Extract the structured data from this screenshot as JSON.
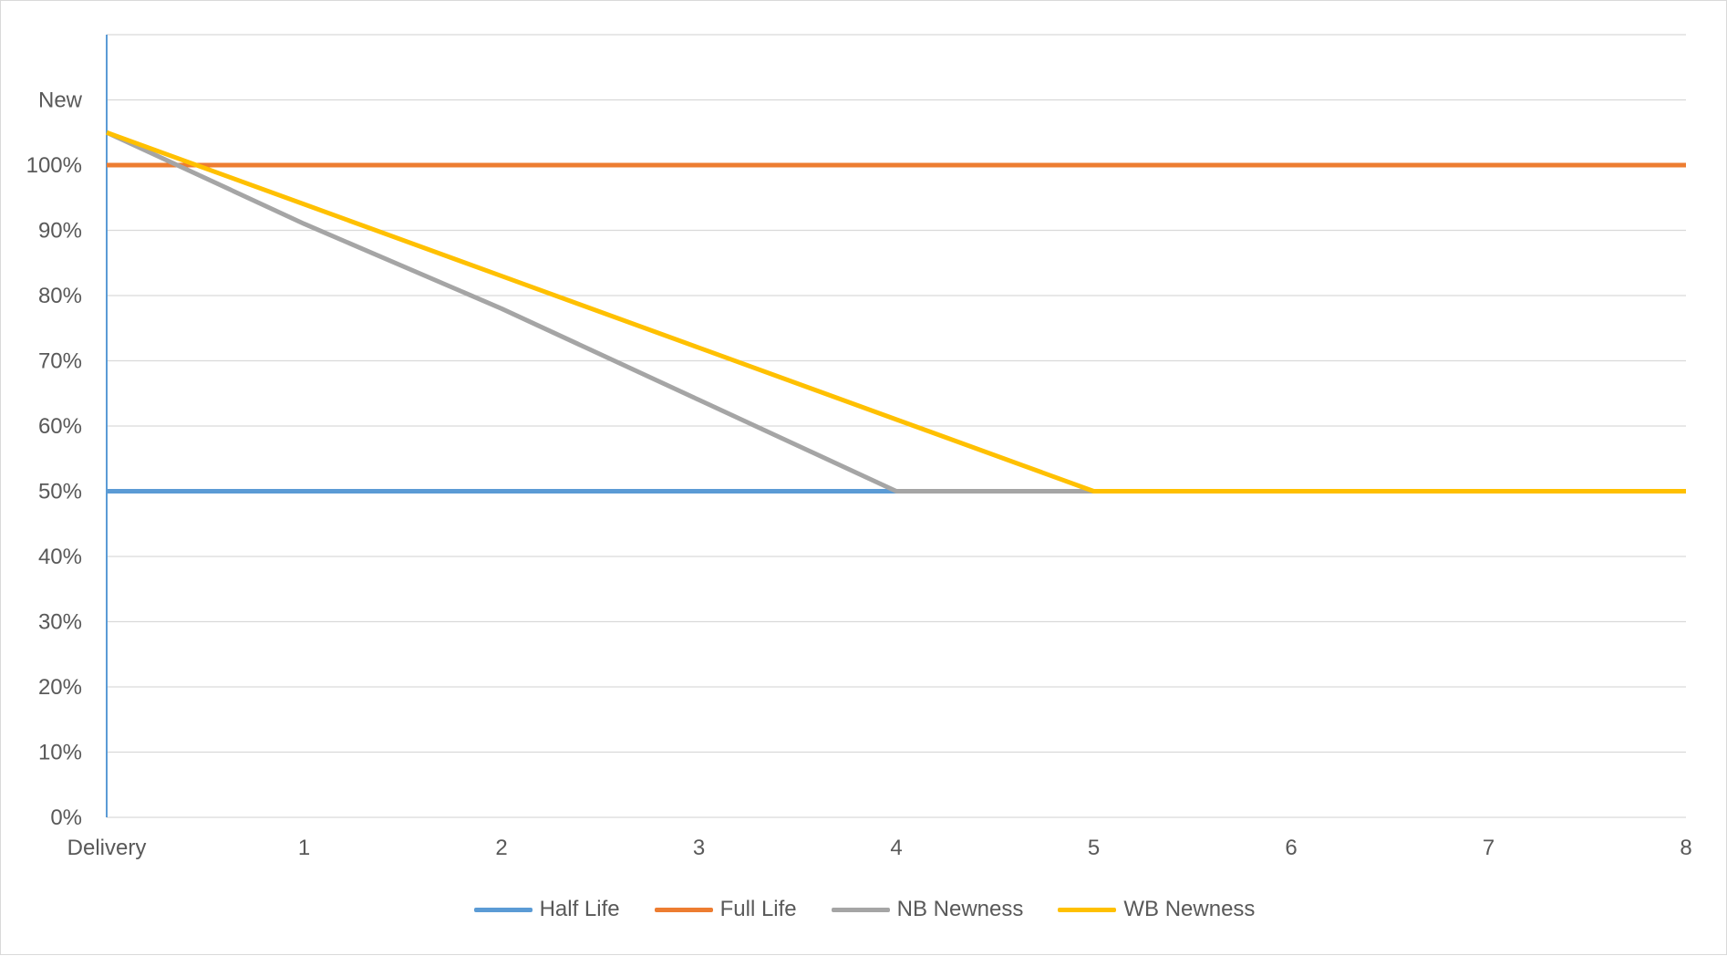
{
  "chart_data": {
    "type": "line",
    "title": "",
    "xlabel": "",
    "ylabel": "",
    "x": [
      0,
      1,
      2,
      3,
      4,
      5,
      6,
      7,
      8
    ],
    "x_tick_labels": [
      "Delivery",
      "1",
      "2",
      "3",
      "4",
      "5",
      "6",
      "7",
      "8"
    ],
    "ylim": [
      0,
      120
    ],
    "y_ticks": [
      0,
      10,
      20,
      30,
      40,
      50,
      60,
      70,
      80,
      90,
      100,
      110,
      120
    ],
    "y_tick_labels": [
      "0%",
      "10%",
      "20%",
      "30%",
      "40%",
      "50%",
      "60%",
      "70%",
      "80%",
      "90%",
      "100%",
      "New",
      ""
    ],
    "grid": true,
    "legend_position": "bottom",
    "series": [
      {
        "name": "Half Life",
        "color": "#5b9bd5",
        "points": [
          [
            0,
            50
          ],
          [
            4,
            50
          ]
        ]
      },
      {
        "name": "Full Life",
        "color": "#ed7d31",
        "points": [
          [
            0,
            100
          ],
          [
            8,
            100
          ]
        ]
      },
      {
        "name": "NB Newness",
        "color": "#a5a5a5",
        "points": [
          [
            0,
            105
          ],
          [
            1,
            91
          ],
          [
            2,
            78
          ],
          [
            3,
            64
          ],
          [
            4,
            50
          ],
          [
            5,
            50
          ]
        ]
      },
      {
        "name": "WB Newness",
        "color": "#ffc000",
        "points": [
          [
            0,
            105
          ],
          [
            1,
            94
          ],
          [
            2,
            83
          ],
          [
            3,
            72
          ],
          [
            4,
            61
          ],
          [
            5,
            50
          ],
          [
            6,
            50
          ],
          [
            7,
            50
          ],
          [
            8,
            50
          ]
        ]
      }
    ]
  }
}
